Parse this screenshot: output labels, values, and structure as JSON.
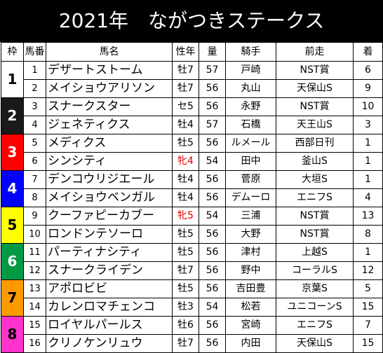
{
  "title": "2021年　ながつきステークス",
  "headers": [
    "枠",
    "馬番",
    "馬名",
    "性年",
    "量",
    "騎手",
    "前走",
    "着"
  ],
  "waku_colors": {
    "1": {
      "bg": "#ffffff",
      "fg": "#000000"
    },
    "2": {
      "bg": "#1a1a1a",
      "fg": "#ffffff"
    },
    "3": {
      "bg": "#ff0000",
      "fg": "#ffffff"
    },
    "4": {
      "bg": "#0000ff",
      "fg": "#ffffff"
    },
    "5": {
      "bg": "#ffff00",
      "fg": "#000000"
    },
    "6": {
      "bg": "#009a44",
      "fg": "#ffffff"
    },
    "7": {
      "bg": "#ff9900",
      "fg": "#000000"
    },
    "8": {
      "bg": "#ff33cc",
      "fg": "#000000"
    }
  },
  "rows": [
    {
      "waku": "1",
      "uma": "1",
      "name": "デザートストーム",
      "sexage": "牡7",
      "sexage_red": false,
      "weight": "57",
      "jockey": "戸崎",
      "prev": "NST賞",
      "rank": "6"
    },
    {
      "waku": "1",
      "uma": "2",
      "name": "メイショウアリソン",
      "sexage": "牡7",
      "sexage_red": false,
      "weight": "56",
      "jockey": "丸山",
      "prev": "天保山S",
      "rank": "9"
    },
    {
      "waku": "2",
      "uma": "3",
      "name": "スナークスター",
      "sexage": "セ5",
      "sexage_red": false,
      "weight": "56",
      "jockey": "永野",
      "prev": "NST賞",
      "rank": "10"
    },
    {
      "waku": "2",
      "uma": "4",
      "name": "ジェネティクス",
      "sexage": "牡4",
      "sexage_red": false,
      "weight": "57",
      "jockey": "石橋",
      "prev": "天王山S",
      "rank": "3"
    },
    {
      "waku": "3",
      "uma": "5",
      "name": "メディクス",
      "sexage": "牡5",
      "sexage_red": false,
      "weight": "56",
      "jockey": "ルメール",
      "prev": "西部日刊",
      "rank": "1"
    },
    {
      "waku": "3",
      "uma": "6",
      "name": "シンシティ",
      "sexage": "牝4",
      "sexage_red": true,
      "weight": "54",
      "jockey": "田中",
      "prev": "釜山S",
      "rank": "1"
    },
    {
      "waku": "4",
      "uma": "7",
      "name": "デンコウリジエール",
      "sexage": "牡4",
      "sexage_red": false,
      "weight": "56",
      "jockey": "菅原",
      "prev": "大垣S",
      "rank": "1"
    },
    {
      "waku": "4",
      "uma": "8",
      "name": "メイショウベンガル",
      "sexage": "牡4",
      "sexage_red": false,
      "weight": "56",
      "jockey": "デムーロ",
      "prev": "エニフS",
      "rank": "4"
    },
    {
      "waku": "5",
      "uma": "9",
      "name": "クーファピーカブー",
      "sexage": "牝5",
      "sexage_red": true,
      "weight": "54",
      "jockey": "三浦",
      "prev": "NST賞",
      "rank": "13"
    },
    {
      "waku": "5",
      "uma": "10",
      "name": "ロンドンテソーロ",
      "sexage": "牡5",
      "sexage_red": false,
      "weight": "56",
      "jockey": "大野",
      "prev": "NST賞",
      "rank": "8"
    },
    {
      "waku": "6",
      "uma": "11",
      "name": "パーティナシティ",
      "sexage": "牡5",
      "sexage_red": false,
      "weight": "56",
      "jockey": "津村",
      "prev": "上越S",
      "rank": "1"
    },
    {
      "waku": "6",
      "uma": "12",
      "name": "スナークライデン",
      "sexage": "牡7",
      "sexage_red": false,
      "weight": "56",
      "jockey": "野中",
      "prev": "コーラルS",
      "rank": "12"
    },
    {
      "waku": "7",
      "uma": "13",
      "name": "アポロビビ",
      "sexage": "牡5",
      "sexage_red": false,
      "weight": "56",
      "jockey": "吉田豊",
      "prev": "京葉S",
      "rank": "5"
    },
    {
      "waku": "7",
      "uma": "14",
      "name": "カレンロマチェンコ",
      "sexage": "牡3",
      "sexage_red": false,
      "weight": "54",
      "jockey": "松若",
      "prev": "ユニコーンS",
      "rank": "15"
    },
    {
      "waku": "8",
      "uma": "15",
      "name": "ロイヤルパールス",
      "sexage": "牡6",
      "sexage_red": false,
      "weight": "56",
      "jockey": "宮崎",
      "prev": "エニフS",
      "rank": "7"
    },
    {
      "waku": "8",
      "uma": "16",
      "name": "クリノケンリュウ",
      "sexage": "牡7",
      "sexage_red": false,
      "weight": "56",
      "jockey": "内田",
      "prev": "天保山S",
      "rank": "15"
    }
  ]
}
